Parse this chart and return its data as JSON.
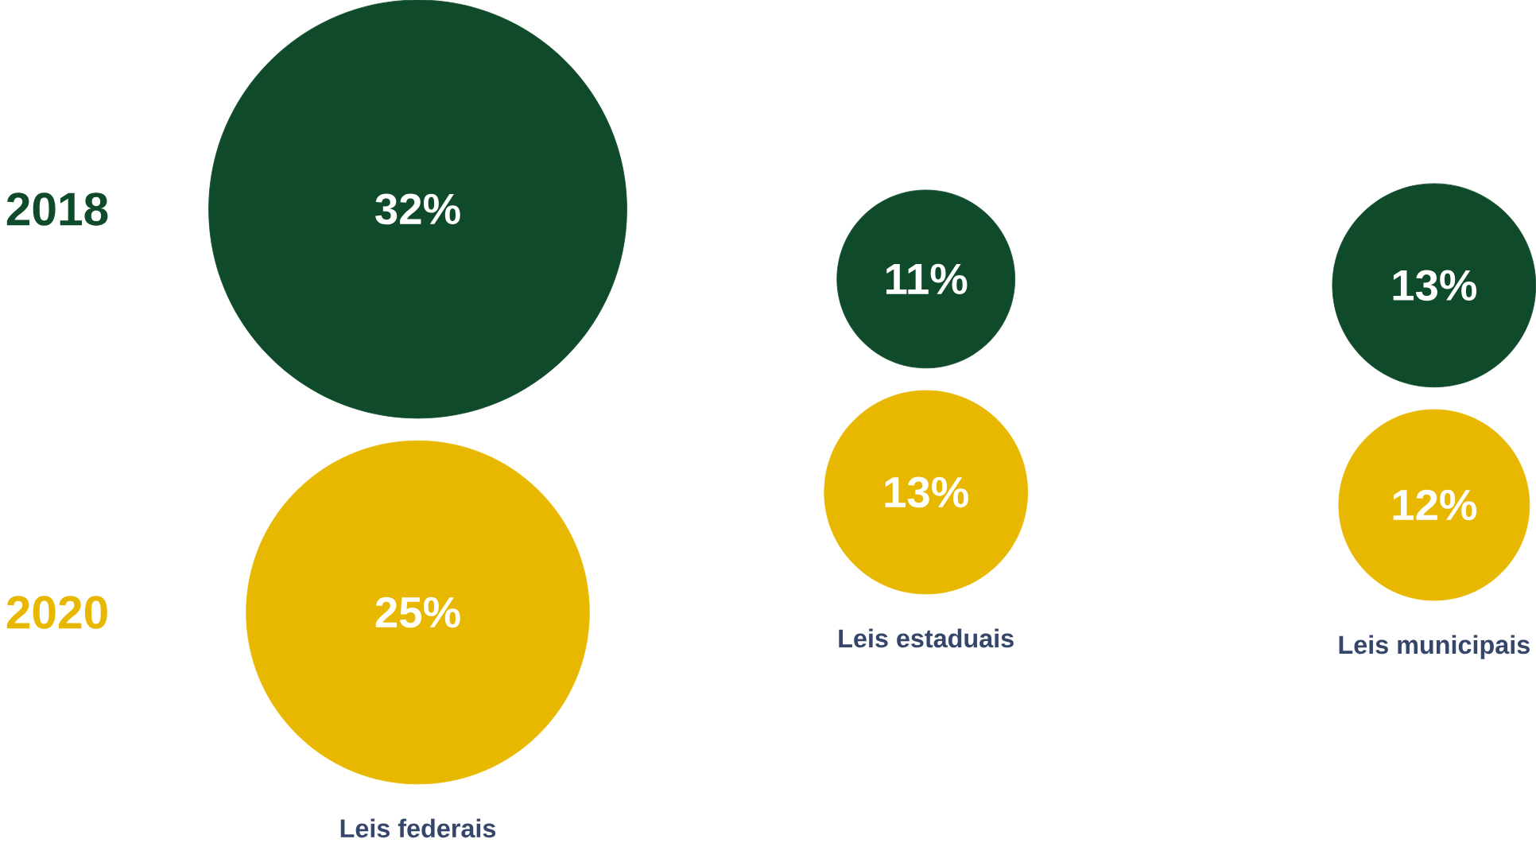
{
  "chart_data": {
    "type": "other",
    "categories": [
      "Leis federais",
      "Leis estaduais",
      "Leis municipais"
    ],
    "series": [
      {
        "name": "2018",
        "color": "#0f4a2b",
        "values": [
          32,
          11,
          13
        ],
        "value_labels": [
          "32%",
          "11%",
          "13%"
        ]
      },
      {
        "name": "2020",
        "color": "#e8b800",
        "values": [
          25,
          13,
          12
        ],
        "value_labels": [
          "25%",
          "13%",
          "12%"
        ]
      }
    ]
  }
}
